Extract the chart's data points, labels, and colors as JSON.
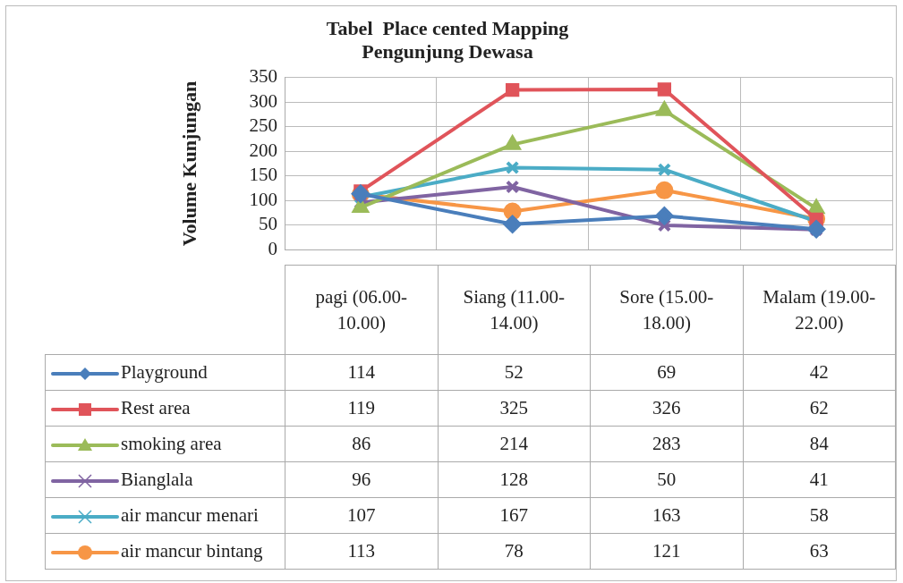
{
  "chart_data": {
    "type": "line",
    "title": [
      "Tabel  Place cented Mapping",
      "Pengunjung Dewasa"
    ],
    "ylabel": "Volume Kunjungan",
    "categories": [
      "pagi (06.00-10.00)",
      "Siang (11.00-14.00)",
      "Sore (15.00-18.00)",
      "Malam (19.00-22.00)"
    ],
    "ylim": [
      0,
      350
    ],
    "yticks": [
      0,
      50,
      100,
      150,
      200,
      250,
      300,
      350
    ],
    "grid": true,
    "legend": "bottom left",
    "data_labels": true,
    "series": [
      {
        "name": "Playground",
        "color": "#4a7ebb",
        "marker": "diamond",
        "values": [
          114,
          52,
          69,
          42
        ]
      },
      {
        "name": "Rest area",
        "color": "#e0545a",
        "marker": "square",
        "values": [
          119,
          325,
          326,
          62
        ]
      },
      {
        "name": "smoking area",
        "color": "#9bbb59",
        "marker": "triangle",
        "values": [
          86,
          214,
          283,
          84
        ]
      },
      {
        "name": "Bianglala",
        "color": "#8064a2",
        "marker": "cross",
        "values": [
          96,
          128,
          50,
          41
        ]
      },
      {
        "name": "air mancur menari",
        "color": "#4bacc6",
        "marker": "cross",
        "values": [
          107,
          167,
          163,
          58
        ]
      },
      {
        "name": "air mancur bintang",
        "color": "#f79646",
        "marker": "circle",
        "values": [
          113,
          78,
          121,
          63
        ]
      }
    ]
  }
}
